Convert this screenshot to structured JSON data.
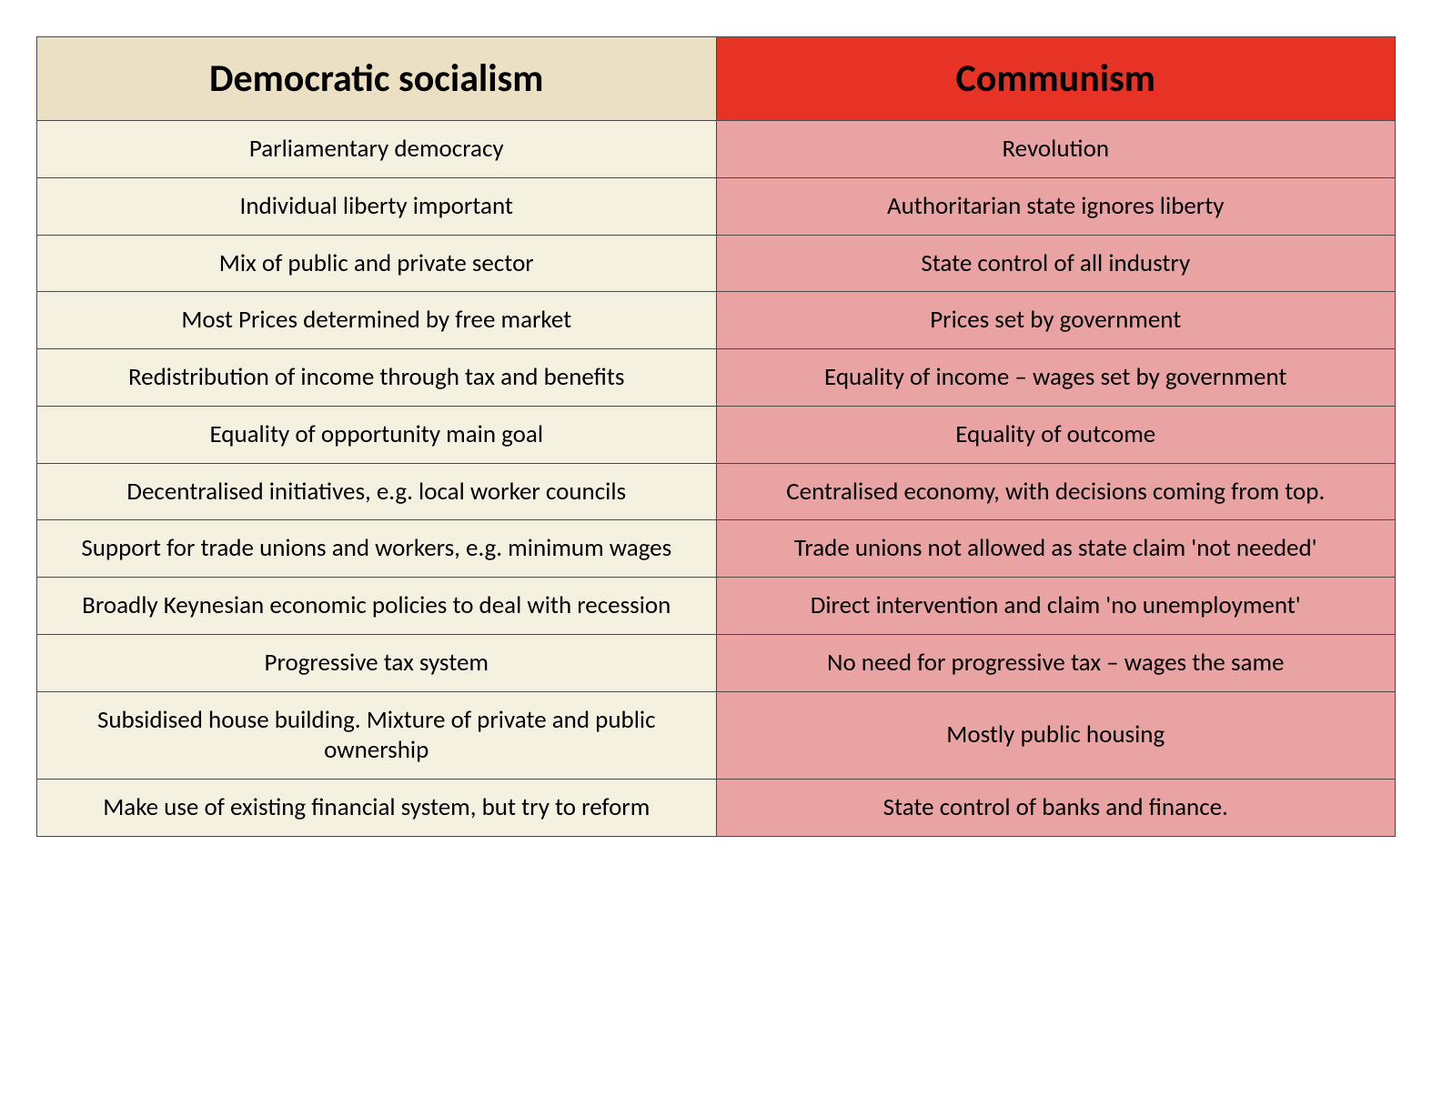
{
  "table": {
    "type": "table",
    "columns": [
      {
        "label": "Democratic socialism",
        "header_bg": "#ece0c4",
        "body_bg": "#f5f1e1"
      },
      {
        "label": "Communism",
        "header_bg": "#e73325",
        "body_bg": "#e9a3a3"
      }
    ],
    "rows": [
      [
        "Parliamentary democracy",
        "Revolution"
      ],
      [
        "Individual liberty important",
        "Authoritarian state ignores liberty"
      ],
      [
        "Mix of public and private sector",
        "State control of all industry"
      ],
      [
        "Most Prices determined by free market",
        "Prices set by government"
      ],
      [
        "Redistribution of income through tax and benefits",
        "Equality of income – wages set by government"
      ],
      [
        "Equality of opportunity main goal",
        "Equality of outcome"
      ],
      [
        "Decentralised initiatives, e.g. local worker councils",
        "Centralised economy, with decisions coming from top."
      ],
      [
        "Support for trade unions and workers, e.g. minimum wages",
        "Trade unions not allowed as state claim 'not needed'"
      ],
      [
        "Broadly Keynesian economic policies to deal with recession",
        "Direct intervention and claim 'no unemployment'"
      ],
      [
        "Progressive tax system",
        "No need for progressive tax – wages the same"
      ],
      [
        "Subsidised house building. Mixture of private and public ownership",
        "Mostly public housing"
      ],
      [
        "Make use of existing financial system, but try to reform",
        "State control of banks and finance."
      ]
    ],
    "border_color": "#4a4a4a",
    "header_fontsize": 42,
    "body_fontsize": 27,
    "font_family": "Calibri",
    "text_color": "#000000",
    "background_color": "#ffffff"
  }
}
